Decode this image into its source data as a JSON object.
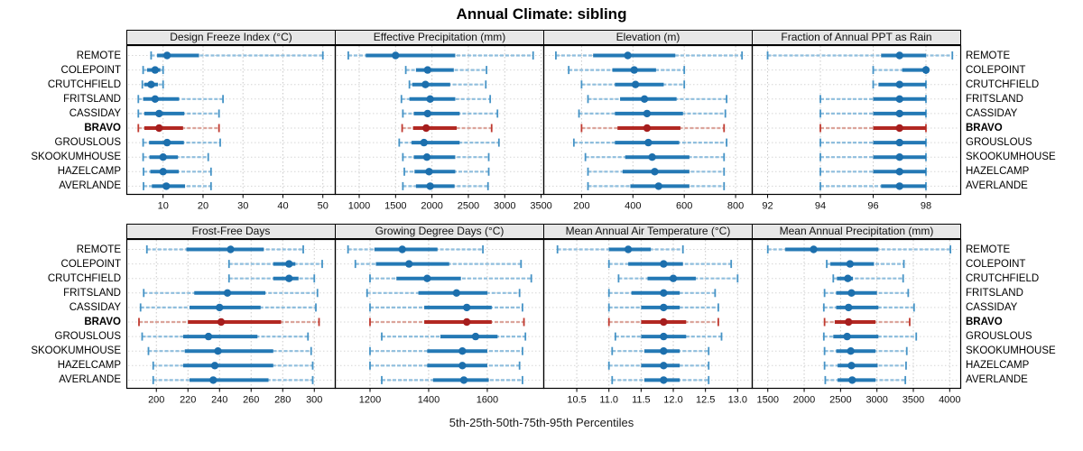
{
  "title": "Annual Climate: sibling",
  "xlabel": "5th-25th-50th-75th-95th Percentiles",
  "sites": [
    "REMOTE",
    "COLEPOINT",
    "CRUTCHFIELD",
    "FRITSLAND",
    "CASSIDAY",
    "BRAVO",
    "GROUSLOUS",
    "SKOOKUMHOUSE",
    "HAZELCAMP",
    "AVERLANDE"
  ],
  "highlight_site": "BRAVO",
  "percentile_levels": [
    5,
    25,
    50,
    75,
    95
  ],
  "colors": {
    "blue_point": "#1c6fad",
    "blue_iqr": "#2479b5",
    "blue_whisker": "#8fbedd",
    "blue_cap": "#4593c6",
    "red_point": "#a61e1e",
    "red_iqr": "#b22822",
    "red_whisker": "#dca49b",
    "red_cap": "#c03a30",
    "header_bg": "#e7e7e7",
    "grid": "#c9c9c9",
    "row_guide": "#d6d6d6",
    "border": "#000000"
  },
  "chart_data": [
    {
      "type": "dot-interval",
      "title": "Design Freeze Index (°C)",
      "grid_row": 1,
      "grid_col": 1,
      "xlim": [
        0.8,
        53.0
      ],
      "tick_values": [
        10,
        20,
        30,
        40,
        50
      ],
      "tick_labels": [
        "10",
        "20",
        "30",
        "40",
        "50"
      ],
      "values": [
        [
          7,
          8.5,
          11,
          19,
          50
        ],
        [
          5,
          6,
          8,
          9.3,
          10
        ],
        [
          4.8,
          5.3,
          7,
          8.7,
          10
        ],
        [
          3.8,
          5,
          8,
          14,
          25
        ],
        [
          3.8,
          5.3,
          9,
          15.3,
          24
        ],
        [
          3.8,
          5.3,
          9,
          15,
          24
        ],
        [
          5,
          6.5,
          11,
          15.2,
          24.3
        ],
        [
          5,
          6.6,
          10,
          13.7,
          21.3
        ],
        [
          5.1,
          6.8,
          10,
          13.9,
          22
        ],
        [
          5.1,
          7.2,
          10.8,
          15.5,
          22
        ]
      ]
    },
    {
      "type": "dot-interval",
      "title": "Effective Precipitation (mm)",
      "grid_row": 1,
      "grid_col": 2,
      "xlim": [
        665,
        3530
      ],
      "tick_values": [
        1000,
        1500,
        2000,
        2500,
        3000,
        3500
      ],
      "tick_labels": [
        "1000",
        "1500",
        "2000",
        "2500",
        "3000",
        "3500"
      ],
      "values": [
        [
          850,
          1090,
          1500,
          2320,
          3390
        ],
        [
          1640,
          1780,
          1940,
          2300,
          2750
        ],
        [
          1690,
          1730,
          1910,
          2250,
          2740
        ],
        [
          1580,
          1690,
          1975,
          2320,
          2800
        ],
        [
          1600,
          1750,
          1940,
          2380,
          2900
        ],
        [
          1590,
          1740,
          1920,
          2340,
          2820
        ],
        [
          1550,
          1720,
          1890,
          2380,
          2920
        ],
        [
          1600,
          1750,
          1930,
          2320,
          2780
        ],
        [
          1620,
          1760,
          1960,
          2320,
          2780
        ],
        [
          1600,
          1780,
          1975,
          2310,
          2770
        ]
      ]
    },
    {
      "type": "dot-interval",
      "title": "Elevation (m)",
      "grid_row": 1,
      "grid_col": 3,
      "xlim": [
        51,
        863
      ],
      "tick_values": [
        200,
        400,
        600,
        800
      ],
      "tick_labels": [
        "200",
        "400",
        "600",
        "800"
      ],
      "values": [
        [
          100,
          245,
          380,
          565,
          825
        ],
        [
          150,
          320,
          405,
          490,
          600
        ],
        [
          200,
          330,
          410,
          520,
          600
        ],
        [
          225,
          350,
          445,
          570,
          765
        ],
        [
          190,
          330,
          455,
          595,
          760
        ],
        [
          200,
          340,
          455,
          585,
          755
        ],
        [
          170,
          330,
          460,
          580,
          765
        ],
        [
          215,
          370,
          475,
          620,
          755
        ],
        [
          225,
          360,
          485,
          620,
          755
        ],
        [
          225,
          390,
          500,
          620,
          755
        ]
      ]
    },
    {
      "type": "dot-interval",
      "title": "Fraction of Annual PPT as Rain",
      "grid_row": 1,
      "grid_col": 4,
      "xlim": [
        91.4,
        99.3
      ],
      "tick_values": [
        92,
        94,
        96,
        98
      ],
      "tick_labels": [
        "92",
        "94",
        "96",
        "98"
      ],
      "values": [
        [
          92,
          96.3,
          97,
          98,
          99
        ],
        [
          96,
          97.1,
          98,
          98,
          98
        ],
        [
          96,
          96.2,
          97,
          98,
          98
        ],
        [
          94,
          96,
          97,
          98,
          98
        ],
        [
          94,
          96,
          97,
          98,
          98
        ],
        [
          94,
          96,
          97,
          98,
          98
        ],
        [
          94,
          96,
          97,
          98,
          98
        ],
        [
          94,
          96,
          97,
          98,
          98
        ],
        [
          94,
          96,
          97,
          98,
          98
        ],
        [
          94,
          96.3,
          97,
          98,
          98
        ]
      ]
    },
    {
      "type": "dot-interval",
      "title": "Frost-Free Days",
      "grid_row": 2,
      "grid_col": 1,
      "xlim": [
        181,
        313
      ],
      "tick_values": [
        200,
        220,
        240,
        260,
        280,
        300
      ],
      "tick_labels": [
        "200",
        "220",
        "240",
        "260",
        "280",
        "300"
      ],
      "values": [
        [
          194,
          219,
          247,
          268,
          293
        ],
        [
          246,
          274,
          284,
          288,
          305
        ],
        [
          246,
          274,
          284,
          290,
          300
        ],
        [
          192,
          224,
          245,
          269,
          302
        ],
        [
          190,
          221,
          240,
          266,
          301
        ],
        [
          189,
          220,
          241,
          279,
          303
        ],
        [
          191,
          217,
          233,
          264,
          296
        ],
        [
          195,
          218,
          239,
          274,
          298
        ],
        [
          198,
          217,
          237,
          274,
          299
        ],
        [
          198,
          221,
          236,
          271,
          299
        ]
      ]
    },
    {
      "type": "dot-interval",
      "title": "Growing Degree Days (°C)",
      "grid_row": 2,
      "grid_col": 2,
      "xlim": [
        1080,
        1791
      ],
      "tick_values": [
        1200,
        1400,
        1600
      ],
      "tick_labels": [
        "1200",
        "1400",
        "1600"
      ],
      "values": [
        [
          1125,
          1215,
          1310,
          1430,
          1585
        ],
        [
          1150,
          1220,
          1333,
          1470,
          1715
        ],
        [
          1200,
          1290,
          1395,
          1510,
          1750
        ],
        [
          1190,
          1365,
          1495,
          1600,
          1710
        ],
        [
          1200,
          1385,
          1530,
          1615,
          1720
        ],
        [
          1200,
          1385,
          1530,
          1615,
          1725
        ],
        [
          1240,
          1440,
          1560,
          1635,
          1730
        ],
        [
          1200,
          1395,
          1515,
          1600,
          1720
        ],
        [
          1200,
          1395,
          1515,
          1600,
          1710
        ],
        [
          1240,
          1415,
          1520,
          1605,
          1720
        ]
      ]
    },
    {
      "type": "dot-interval",
      "title": "Mean Annual Air Temperature (°C)",
      "grid_row": 2,
      "grid_col": 3,
      "xlim": [
        9.98,
        13.22
      ],
      "tick_values": [
        10.5,
        11.0,
        11.5,
        12.0,
        12.5,
        13.0
      ],
      "tick_labels": [
        "10.5",
        "11.0",
        "11.5",
        "12.0",
        "12.5",
        "13.0"
      ],
      "values": [
        [
          10.2,
          11.0,
          11.3,
          11.65,
          12.15
        ],
        [
          11.0,
          11.3,
          11.85,
          12.15,
          12.9
        ],
        [
          11.15,
          11.6,
          12.0,
          12.35,
          13.0
        ],
        [
          11.0,
          11.35,
          11.85,
          12.1,
          12.65
        ],
        [
          11.0,
          11.5,
          11.85,
          12.1,
          12.7
        ],
        [
          11.0,
          11.5,
          11.85,
          12.2,
          12.7
        ],
        [
          11.1,
          11.5,
          11.85,
          12.2,
          12.75
        ],
        [
          11.05,
          11.55,
          11.85,
          12.1,
          12.55
        ],
        [
          11.0,
          11.5,
          11.85,
          12.1,
          12.55
        ],
        [
          11.05,
          11.55,
          11.85,
          12.1,
          12.55
        ]
      ]
    },
    {
      "type": "dot-interval",
      "title": "Mean Annual Precipitation (mm)",
      "grid_row": 2,
      "grid_col": 4,
      "xlim": [
        1280,
        4145
      ],
      "tick_values": [
        1500,
        2000,
        2500,
        3000,
        3500,
        4000
      ],
      "tick_labels": [
        "1500",
        "2000",
        "2500",
        "3000",
        "3500",
        "4000"
      ],
      "values": [
        [
          1500,
          1740,
          2130,
          3020,
          4010
        ],
        [
          2310,
          2360,
          2630,
          2960,
          3370
        ],
        [
          2400,
          2450,
          2600,
          2670,
          3360
        ],
        [
          2280,
          2440,
          2650,
          3000,
          3430
        ],
        [
          2270,
          2440,
          2610,
          3020,
          3510
        ],
        [
          2280,
          2420,
          2610,
          2980,
          3450
        ],
        [
          2270,
          2400,
          2590,
          3020,
          3540
        ],
        [
          2280,
          2440,
          2640,
          2980,
          3410
        ],
        [
          2280,
          2460,
          2650,
          3010,
          3400
        ],
        [
          2290,
          2460,
          2660,
          2980,
          3390
        ]
      ]
    }
  ]
}
